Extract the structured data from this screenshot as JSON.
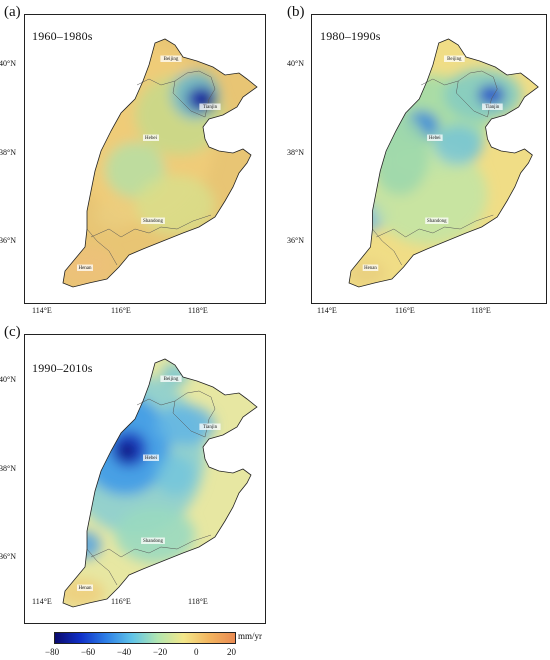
{
  "panels": [
    {
      "tag": "(a)",
      "period": "1960–1980s",
      "dataset": "a"
    },
    {
      "tag": "(b)",
      "period": "1980–1990s",
      "dataset": "b"
    },
    {
      "tag": "(c)",
      "period": "1990–2010s",
      "dataset": "c"
    }
  ],
  "provinces": [
    "Beijing",
    "Tianjin",
    "Hebei",
    "Shandong",
    "Henan"
  ],
  "lat_ticks": [
    "40°N",
    "38°N",
    "36°N"
  ],
  "lon_ticks": [
    "114°E",
    "116°E",
    "118°E"
  ],
  "colorbar": {
    "unit": "mm/yr",
    "ticks": [
      "−80",
      "−60",
      "−40",
      "−20",
      "0",
      "20"
    ],
    "colors": [
      "#0a0a6e",
      "#1030c8",
      "#2d7fe6",
      "#60c4e8",
      "#b2e6b0",
      "#f3e78a",
      "#f3b55f",
      "#e98a52"
    ]
  }
}
